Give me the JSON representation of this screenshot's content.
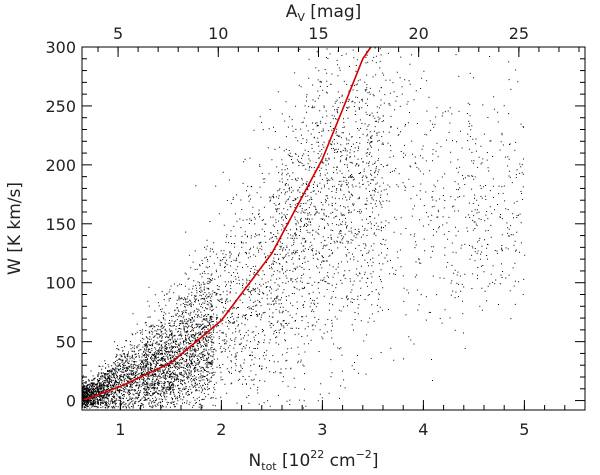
{
  "chart_data": {
    "type": "scatter",
    "title": "",
    "xlabel": {
      "base": "N",
      "sub": "tot",
      "rest": " [10",
      "sup": "22",
      "unit": " cm",
      "unit_sup": "−2",
      "close": "]"
    },
    "x2label": {
      "base": "A",
      "sub": "V",
      "rest": " [mag]"
    },
    "ylabel": "W [K km/s]",
    "xlim": [
      0.62,
      5.6
    ],
    "ylim": [
      -8,
      300
    ],
    "x2lim": [
      3.2,
      28.3
    ],
    "xticks": [
      1,
      2,
      3,
      4,
      5
    ],
    "x2ticks": [
      5,
      10,
      15,
      20,
      25
    ],
    "yticks": [
      0,
      50,
      100,
      150,
      200,
      250,
      300
    ],
    "grid": false,
    "legend": "none",
    "series": [
      {
        "kind": "points",
        "color": "#000000",
        "density_profile": [
          {
            "x": 0.7,
            "y_center": 5,
            "y_spread": 6
          },
          {
            "x": 1.0,
            "y_center": 15,
            "y_spread": 15
          },
          {
            "x": 1.5,
            "y_center": 30,
            "y_spread": 25
          },
          {
            "x": 2.0,
            "y_center": 60,
            "y_spread": 40
          },
          {
            "x": 2.5,
            "y_center": 110,
            "y_spread": 60
          },
          {
            "x": 3.0,
            "y_center": 170,
            "y_spread": 70
          },
          {
            "x": 3.5,
            "y_center": 190,
            "y_spread": 65
          },
          {
            "x": 4.0,
            "y_center": 180,
            "y_spread": 60
          },
          {
            "x": 4.5,
            "y_center": 170,
            "y_spread": 50
          }
        ]
      },
      {
        "kind": "fit-curve",
        "color": "#d40000",
        "x": [
          0.62,
          1.0,
          1.5,
          2.0,
          2.5,
          3.0,
          3.2,
          3.4,
          3.48
        ],
        "y": [
          0,
          12,
          32,
          68,
          125,
          205,
          247,
          290,
          300
        ]
      }
    ]
  }
}
